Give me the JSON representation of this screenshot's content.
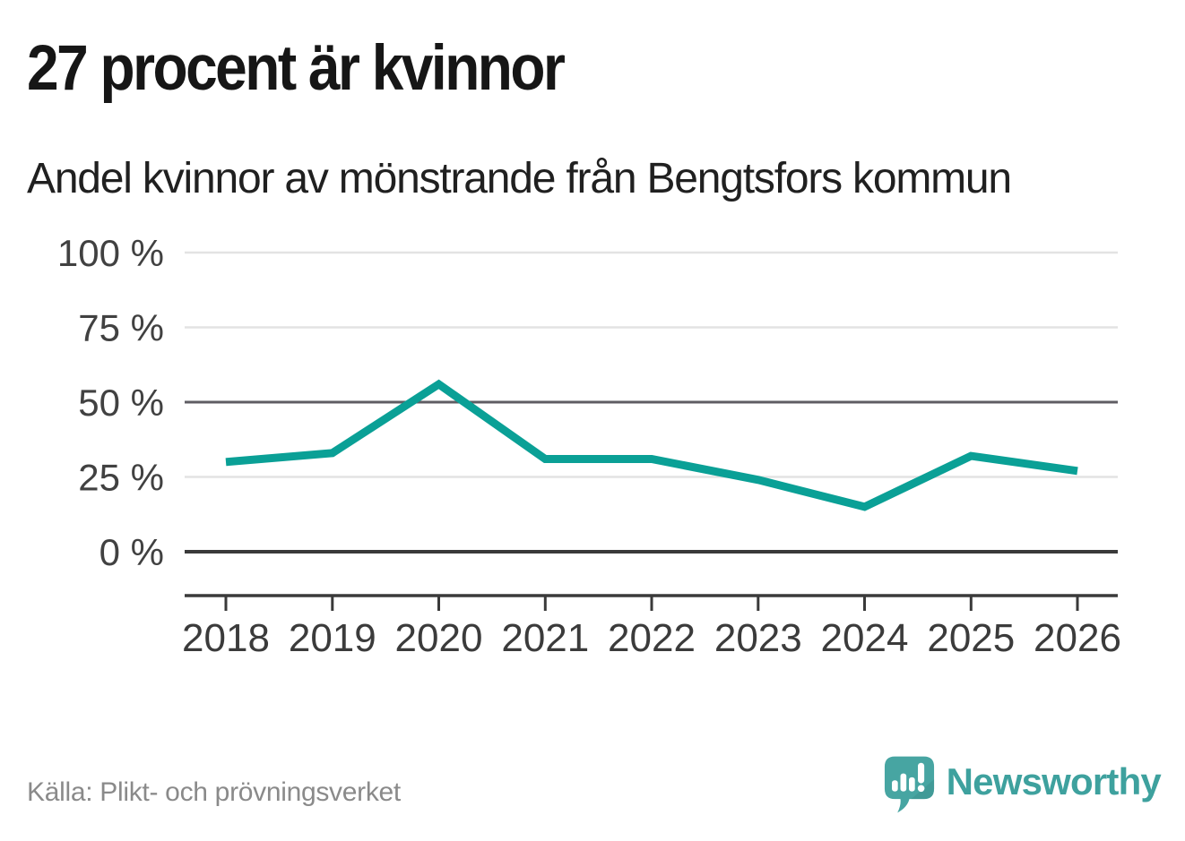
{
  "header": {
    "title": "27 procent är kvinnor"
  },
  "chart_data": {
    "type": "line",
    "title": "Andel kvinnor av mönstrande från Bengtsfors kommun",
    "categories": [
      "2018",
      "2019",
      "2020",
      "2021",
      "2022",
      "2023",
      "2024",
      "2025",
      "2026"
    ],
    "series": [
      {
        "name": "Andel kvinnor av mönstrande",
        "values": [
          30,
          33,
          56,
          31,
          31,
          24,
          15,
          32,
          27
        ],
        "color": "#0aa096"
      }
    ],
    "unit": "%",
    "xlabel": "",
    "ylabel": "",
    "ylim": [
      0,
      100
    ],
    "ytick_values": [
      100,
      75,
      50,
      25,
      0
    ],
    "ytick_labels": [
      "100 %",
      "75 %",
      "50 %",
      "25 %",
      "0 %"
    ],
    "grid": "horizontal",
    "legend": "none",
    "highlighted_gridline": 50,
    "colors": {
      "line": "#0aa096",
      "grid_light": "#e3e3e3",
      "grid_mid": "#5f5d63",
      "axis": "#3a3a3a"
    }
  },
  "footer": {
    "source": "Källa: Plikt- och prövningsverket",
    "brand": "Newsworthy",
    "brand_color": "#3ea19e",
    "logo_icon": "newsworthy-speech-bubble-bar-chart-icon"
  }
}
